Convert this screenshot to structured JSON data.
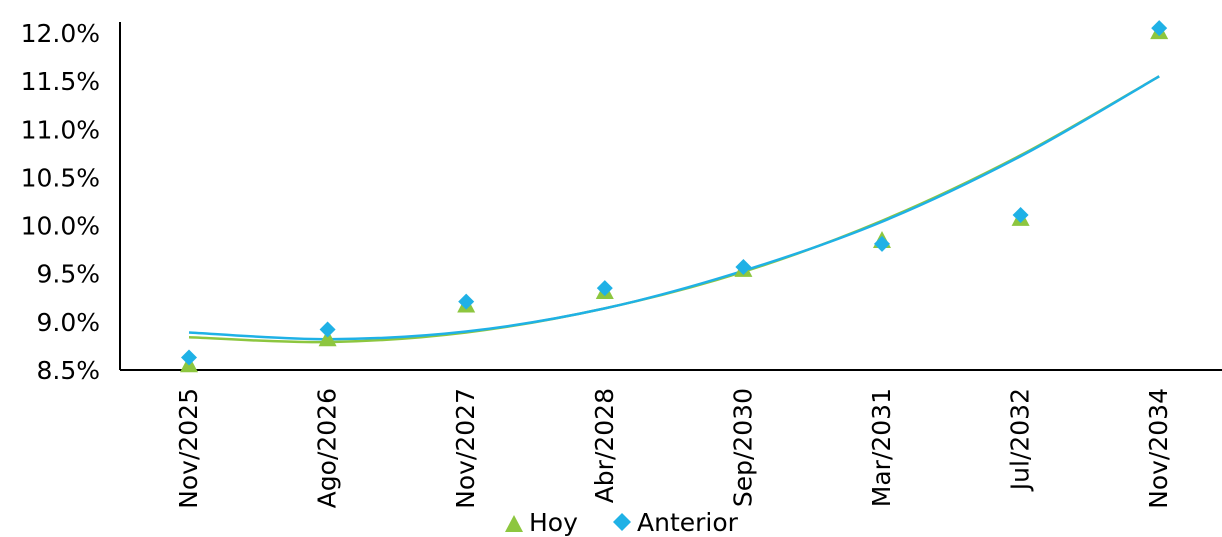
{
  "chart_data": {
    "type": "scatter",
    "categories": [
      "Nov/2025",
      "Ago/2026",
      "Nov/2027",
      "Abr/2028",
      "Sep/2030",
      "Mar/2031",
      "Jul/2032",
      "Nov/2034"
    ],
    "y_ticks": [
      "8.5%",
      "9.0%",
      "9.5%",
      "10.0%",
      "10.5%",
      "11.0%",
      "11.5%",
      "12.0%"
    ],
    "ylim": [
      8.5,
      12.0
    ],
    "grid": false,
    "legend_position": "bottom",
    "series": [
      {
        "name": "Hoy",
        "marker": "triangle",
        "color": "#8dc63f",
        "values": [
          8.56,
          8.83,
          9.18,
          9.32,
          9.55,
          9.85,
          10.08,
          12.02
        ],
        "trendline": [
          8.84,
          8.79,
          8.89,
          9.14,
          9.52,
          10.05,
          10.73,
          11.55
        ]
      },
      {
        "name": "Anterior",
        "marker": "diamond",
        "color": "#1fb1e6",
        "values": [
          8.63,
          8.92,
          9.21,
          9.35,
          9.57,
          9.81,
          10.11,
          12.05
        ],
        "trendline": [
          8.89,
          8.82,
          8.9,
          9.14,
          9.53,
          10.04,
          10.72,
          11.55
        ]
      }
    ]
  }
}
